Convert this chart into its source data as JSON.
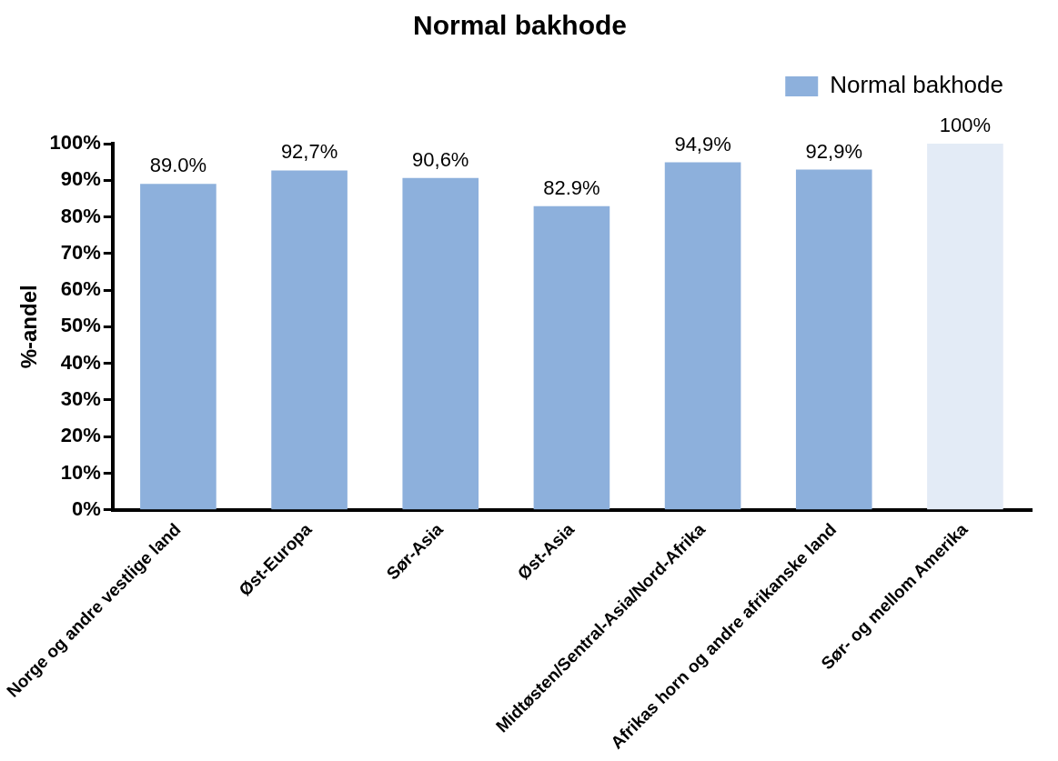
{
  "chart_data": {
    "type": "bar",
    "title": "Normal bakhode",
    "ylabel": "%-andel",
    "categories": [
      "Norge og andre vestlige land",
      "Øst-Europa",
      "Sør-Asia",
      "Øst-Asia",
      "Midtøsten/Sentral-Asia/Nord-Afrika",
      "Afrikas horn og andre afrikanske land",
      "Sør- og mellom Amerika"
    ],
    "series": [
      {
        "name": "Normal bakhode",
        "color": "#8db0dc",
        "colors": [
          "#8db0dc",
          "#8db0dc",
          "#8db0dc",
          "#8db0dc",
          "#8db0dc",
          "#8db0dc",
          "#e3ebf6"
        ],
        "values": [
          89.0,
          92.7,
          90.6,
          82.9,
          94.9,
          92.9,
          100
        ],
        "value_labels": [
          "89.0%",
          "92,7%",
          "90,6%",
          "82.9%",
          "94,9%",
          "92,9%",
          "100%"
        ]
      }
    ],
    "ylim": [
      0,
      100
    ],
    "yticks": [
      {
        "value": 0,
        "label": "0%"
      },
      {
        "value": 10,
        "label": "10%"
      },
      {
        "value": 20,
        "label": "20%"
      },
      {
        "value": 30,
        "label": "30%"
      },
      {
        "value": 40,
        "label": "40%"
      },
      {
        "value": 50,
        "label": "50%"
      },
      {
        "value": 60,
        "label": "60%"
      },
      {
        "value": 70,
        "label": "70%"
      },
      {
        "value": 80,
        "label": "80%"
      },
      {
        "value": 90,
        "label": "90%"
      },
      {
        "value": 100,
        "label": "100%"
      }
    ],
    "grid": false,
    "legend": "top right"
  }
}
